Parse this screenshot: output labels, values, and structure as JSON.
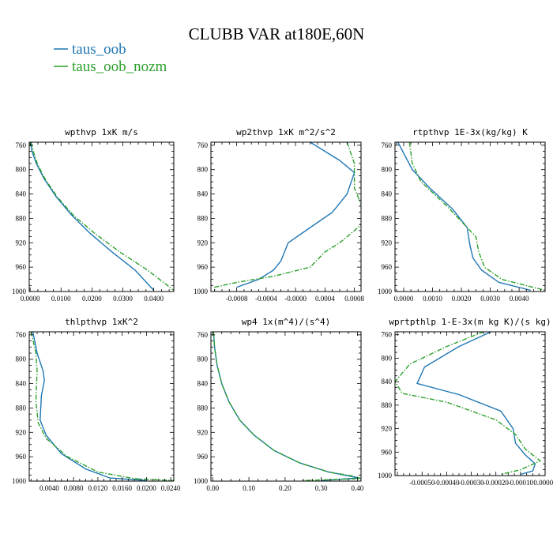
{
  "figure": {
    "title": "CLUBB VAR at180E,60N",
    "legend": [
      {
        "label": "taus_oob",
        "color": "#1f77b4",
        "dash": "solid"
      },
      {
        "label": "taus_oob_nozm",
        "color": "#2ca02c",
        "dash": "dashdot"
      }
    ]
  },
  "chart_data": [
    {
      "type": "line",
      "title": "wpthvp  1xK m/s",
      "ylim": [
        1000,
        755
      ],
      "xlim": [
        -0.0003,
        0.0465
      ],
      "yticks": [
        760,
        800,
        840,
        880,
        920,
        960,
        1000
      ],
      "xticks": [
        0.0,
        0.01,
        0.02,
        0.03,
        0.04
      ],
      "xtick_labels": [
        "0.0000",
        "0.0100",
        "0.0200",
        "0.0300",
        "0.0400"
      ],
      "series": [
        {
          "name": "taus_oob",
          "color": "#1f77b4",
          "dash": "solid",
          "x": [
            0.0001,
            0.0006,
            0.002,
            0.0045,
            0.0085,
            0.0135,
            0.0195,
            0.0265,
            0.034,
            0.04
          ],
          "y": [
            755,
            770,
            790,
            815,
            845,
            875,
            905,
            935,
            965,
            998
          ]
        },
        {
          "name": "taus_oob_nozm",
          "color": "#2ca02c",
          "dash": "dashdot",
          "x": [
            0.0003,
            0.001,
            0.0023,
            0.0048,
            0.0088,
            0.014,
            0.021,
            0.029,
            0.038,
            0.0465
          ],
          "y": [
            755,
            770,
            790,
            815,
            845,
            875,
            905,
            935,
            965,
            998
          ]
        }
      ]
    },
    {
      "type": "line",
      "title": "wp2thvp  1xK m^2/s^2",
      "ylim": [
        1000,
        755
      ],
      "xlim": [
        -0.00115,
        0.00089
      ],
      "yticks": [
        760,
        800,
        840,
        880,
        920,
        960,
        1000
      ],
      "xticks": [
        -0.0008,
        -0.0004,
        0.0,
        0.0004,
        0.0008
      ],
      "xtick_labels": [
        "-0.0008",
        "-0.0004",
        "-0.0000",
        "0.0004",
        "0.0008"
      ],
      "series": [
        {
          "name": "taus_oob",
          "color": "#1f77b4",
          "dash": "solid",
          "x": [
            0.0002,
            0.0006,
            0.0008,
            0.0007,
            0.0005,
            0.0002,
            -0.0001,
            -0.0002,
            -0.0003,
            -0.0005,
            -0.0008
          ],
          "y": [
            755,
            785,
            805,
            840,
            870,
            895,
            920,
            950,
            965,
            980,
            993
          ]
        },
        {
          "name": "taus_oob_nozm",
          "color": "#2ca02c",
          "dash": "dashdot",
          "x": [
            0.0007,
            0.0008,
            0.0008,
            0.0009,
            0.0009,
            0.0006,
            0.0004,
            0.0002,
            -0.0003,
            -0.0008,
            -0.0011,
            -0.0011
          ],
          "y": [
            755,
            790,
            830,
            860,
            890,
            920,
            935,
            960,
            975,
            985,
            993,
            998
          ]
        }
      ]
    },
    {
      "type": "line",
      "title": "rtpthvp  1E-3x(kg/kg) K",
      "ylim": [
        1000,
        755
      ],
      "xlim": [
        -0.0003,
        0.0049
      ],
      "yticks": [
        760,
        800,
        840,
        880,
        920,
        960,
        1000
      ],
      "xticks": [
        0.0,
        0.001,
        0.002,
        0.003,
        0.004
      ],
      "xtick_labels": [
        "0.0000",
        "0.0010",
        "0.0020",
        "0.0030",
        "0.0040"
      ],
      "series": [
        {
          "name": "taus_oob",
          "color": "#1f77b4",
          "dash": "solid",
          "x": [
            -0.0002,
            0.0003,
            0.0009,
            0.0017,
            0.0022,
            0.0023,
            0.0024,
            0.0027,
            0.0033,
            0.0044
          ],
          "y": [
            755,
            800,
            830,
            865,
            895,
            925,
            945,
            965,
            985,
            998
          ]
        },
        {
          "name": "taus_oob_nozm",
          "color": "#2ca02c",
          "dash": "dashdot",
          "x": [
            0.0002,
            0.0003,
            0.0006,
            0.0015,
            0.0021,
            0.0025,
            0.0026,
            0.0028,
            0.0034,
            0.0049
          ],
          "y": [
            755,
            790,
            820,
            860,
            890,
            910,
            935,
            960,
            980,
            998
          ]
        }
      ]
    },
    {
      "type": "line",
      "title": "thlpthvp  1xK^2",
      "ylim": [
        1000,
        755
      ],
      "xlim": [
        0.0007,
        0.0245
      ],
      "yticks": [
        760,
        800,
        840,
        880,
        920,
        960,
        1000
      ],
      "xticks": [
        0.004,
        0.008,
        0.012,
        0.016,
        0.02,
        0.024
      ],
      "xtick_labels": [
        "0.0040",
        "0.0080",
        "0.0120",
        "0.0160",
        "0.0200",
        "0.0240"
      ],
      "series": [
        {
          "name": "taus_oob",
          "color": "#1f77b4",
          "dash": "solid",
          "x": [
            0.0013,
            0.002,
            0.003,
            0.0032,
            0.0027,
            0.0025,
            0.0035,
            0.006,
            0.01,
            0.014,
            0.02
          ],
          "y": [
            755,
            790,
            820,
            835,
            860,
            900,
            925,
            955,
            980,
            995,
            999
          ]
        },
        {
          "name": "taus_oob_nozm",
          "color": "#2ca02c",
          "dash": "dashdot",
          "x": [
            0.001,
            0.0018,
            0.002,
            0.0019,
            0.0018,
            0.0022,
            0.0035,
            0.007,
            0.012,
            0.018,
            0.0245
          ],
          "y": [
            755,
            790,
            820,
            840,
            870,
            905,
            930,
            960,
            985,
            996,
            999
          ]
        }
      ]
    },
    {
      "type": "line",
      "title": "wp4  1x(m^4)/(s^4)",
      "ylim": [
        1000,
        755
      ],
      "xlim": [
        -0.005,
        0.41
      ],
      "yticks": [
        760,
        800,
        840,
        880,
        920,
        960,
        1000
      ],
      "xticks": [
        0.0,
        0.1,
        0.2,
        0.3,
        0.4
      ],
      "xtick_labels": [
        "0.00",
        "0.10",
        "0.20",
        "0.30",
        "0.40"
      ],
      "series": [
        {
          "name": "taus_oob",
          "color": "#1f77b4",
          "dash": "solid",
          "x": [
            0.002,
            0.005,
            0.012,
            0.025,
            0.045,
            0.075,
            0.115,
            0.17,
            0.24,
            0.32,
            0.38,
            0.405,
            0.3
          ],
          "y": [
            755,
            780,
            810,
            840,
            870,
            900,
            925,
            950,
            970,
            985,
            992,
            995,
            999
          ]
        },
        {
          "name": "taus_oob_nozm",
          "color": "#2ca02c",
          "dash": "dashdot",
          "x": [
            0.002,
            0.005,
            0.012,
            0.025,
            0.045,
            0.075,
            0.115,
            0.17,
            0.24,
            0.32,
            0.39,
            0.41,
            0.25
          ],
          "y": [
            755,
            780,
            810,
            840,
            870,
            900,
            925,
            950,
            970,
            985,
            992,
            996,
            999
          ]
        }
      ]
    },
    {
      "type": "line",
      "title": "wprtpthlp  1-E-3x(m kg K)/(s kg)",
      "ylim": [
        1000,
        755
      ],
      "xlim": [
        -0.00061,
        0.0
      ],
      "yticks": [
        760,
        800,
        840,
        880,
        920,
        960,
        1000
      ],
      "xticks": [
        -0.0005,
        -0.0004,
        -0.0003,
        -0.0002,
        -0.0001,
        0.0
      ],
      "xtick_labels": [
        "-0.00050",
        "-0.00040",
        "-0.00030",
        "-0.00020",
        "-0.00010",
        "0.00000"
      ],
      "series": [
        {
          "name": "taus_oob",
          "color": "#1f77b4",
          "dash": "solid",
          "x": [
            -0.00022,
            -0.00035,
            -0.00049,
            -0.00052,
            -0.00035,
            -0.00018,
            -0.00013,
            -0.00012,
            -8e-05,
            -4e-05,
            -5e-05,
            -0.0001
          ],
          "y": [
            755,
            780,
            815,
            843,
            862,
            890,
            920,
            945,
            965,
            980,
            992,
            998
          ]
        },
        {
          "name": "taus_oob_nozm",
          "color": "#2ca02c",
          "dash": "dashdot",
          "x": [
            -0.00025,
            -0.0004,
            -0.00055,
            -0.00061,
            -0.00058,
            -0.0004,
            -0.0002,
            -0.00012,
            -8e-05,
            -2e-05,
            -0.0001,
            -0.00018
          ],
          "y": [
            755,
            780,
            810,
            840,
            860,
            875,
            905,
            930,
            955,
            975,
            990,
            998
          ]
        }
      ]
    }
  ]
}
